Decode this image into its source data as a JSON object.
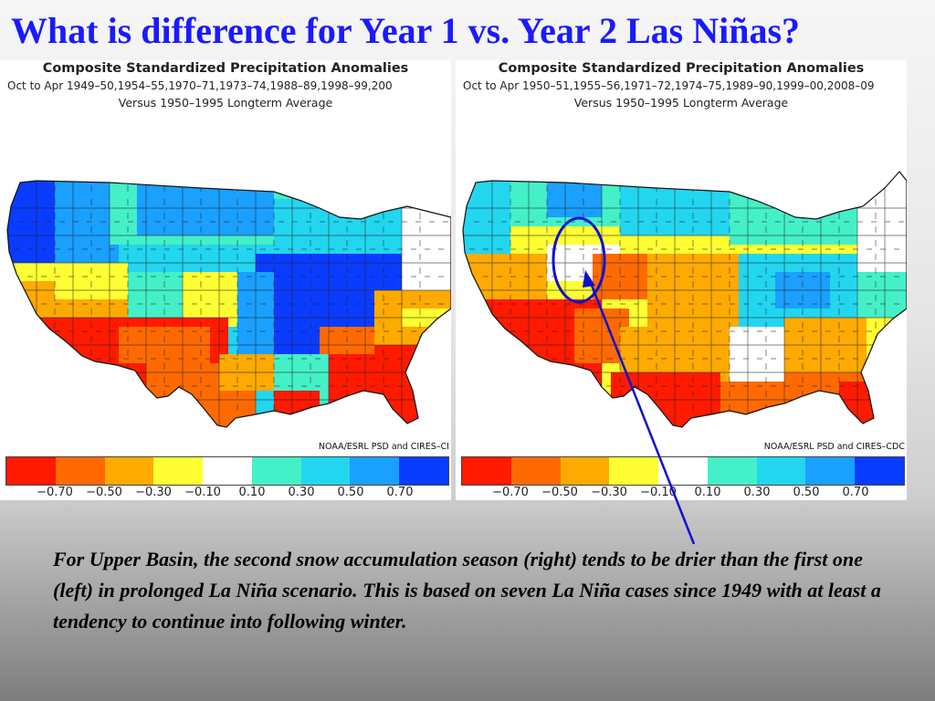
{
  "slide": {
    "title": "What is difference for Year 1 vs. Year 2 Las Niñas?",
    "caption": "For Upper Basin, the second snow accumulation season (right) tends to be drier than the first one (left) in prolonged La Niña scenario. This is based on seven La Niña cases since 1949 with at least a tendency to continue into following winter."
  },
  "maps": [
    {
      "title": "Composite Standardized Precipitation Anomalies",
      "subtitle": "Oct to Apr   1949–50,1954–55,1970–71,1973–74,1988–89,1998–99,200",
      "baseline": "Versus 1950–1995 Longterm Average",
      "credit": "NOAA/ESRL PSD and CIRES–CI"
    },
    {
      "title": "Composite Standardized Precipitation Anomalies",
      "subtitle": "Oct to Apr   1950–51,1955–56,1971–72,1974–75,1989–90,1999–00,2008–09",
      "baseline": "Versus 1950–1995 Longterm Average",
      "credit": "NOAA/ESRL PSD and CIRES–CDC"
    }
  ],
  "legend": {
    "colors": [
      "#ff1a00",
      "#ff6a00",
      "#ffaa00",
      "#ffff33",
      "#ffffff",
      "#44f0c8",
      "#22d6f0",
      "#1aa0ff",
      "#0a3cff"
    ],
    "ticks": [
      "−0.70",
      "−0.50",
      "−0.30",
      "−0.10",
      "0.10",
      "0.30",
      "0.50",
      "0.70"
    ]
  },
  "map_colors": {
    "dry_strong": "#ff1a00",
    "dry": "#ff6a00",
    "dry_light": "#ffaa00",
    "dry_slight": "#ffff33",
    "neutral": "#ffffff",
    "wet_slight": "#44f0c8",
    "wet_light": "#22d6f0",
    "wet": "#1aa0ff",
    "wet_strong": "#0a3cff",
    "annotation": "#1010d0"
  }
}
